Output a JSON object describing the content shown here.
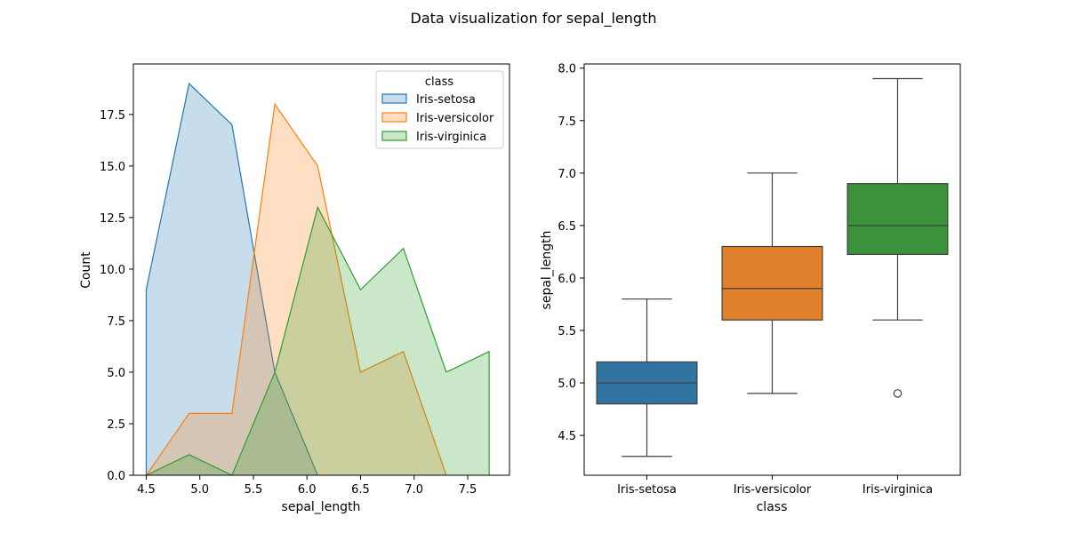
{
  "figure_title": "Data visualization for sepal_length",
  "chart_data": [
    {
      "type": "area",
      "subtype": "histogram-poly",
      "xlabel": "sepal_length",
      "ylabel": "Count",
      "xlim": [
        4.38,
        7.89
      ],
      "ylim": [
        0,
        19.95
      ],
      "xticks": [
        4.5,
        5.0,
        5.5,
        6.0,
        6.5,
        7.0,
        7.5
      ],
      "xtick_labels": [
        "4.5",
        "5.0",
        "5.5",
        "6.0",
        "6.5",
        "7.0",
        "7.5"
      ],
      "yticks": [
        0,
        2.5,
        5,
        7.5,
        10,
        12.5,
        15,
        17.5
      ],
      "ytick_labels": [
        "0.0",
        "2.5",
        "5.0",
        "7.5",
        "10.0",
        "12.5",
        "15.0",
        "17.5"
      ],
      "grid": false,
      "legend": {
        "title": "class",
        "position": "top-right"
      },
      "series": [
        {
          "name": "Iris-setosa",
          "color": "#1f77b4",
          "x": [
            4.5,
            4.9,
            5.3,
            5.7,
            6.1
          ],
          "values": [
            9,
            19,
            17,
            5,
            0
          ]
        },
        {
          "name": "Iris-versicolor",
          "color": "#ff7f0e",
          "x": [
            4.5,
            4.9,
            5.3,
            5.7,
            6.1,
            6.5,
            6.9,
            7.3
          ],
          "values": [
            0,
            3,
            3,
            18,
            15,
            5,
            6,
            0
          ]
        },
        {
          "name": "Iris-virginica",
          "color": "#2ca02c",
          "x": [
            4.5,
            4.9,
            5.3,
            5.7,
            6.1,
            6.5,
            6.9,
            7.3,
            7.7
          ],
          "values": [
            0,
            1,
            0,
            5,
            13,
            9,
            11,
            5,
            6
          ]
        }
      ]
    },
    {
      "type": "box",
      "xlabel": "class",
      "ylabel": "sepal_length",
      "ylim": [
        4.12,
        8.04
      ],
      "yticks": [
        4.5,
        5.0,
        5.5,
        6.0,
        6.5,
        7.0,
        7.5,
        8.0
      ],
      "ytick_labels": [
        "4.5",
        "5.0",
        "5.5",
        "6.0",
        "6.5",
        "7.0",
        "7.5",
        "8.0"
      ],
      "grid": false,
      "categories": [
        "Iris-setosa",
        "Iris-versicolor",
        "Iris-virginica"
      ],
      "boxes": [
        {
          "name": "Iris-setosa",
          "color": "#3274a1",
          "whislo": 4.3,
          "q1": 4.8,
          "med": 5.0,
          "q3": 5.2,
          "whishi": 5.8,
          "fliers": []
        },
        {
          "name": "Iris-versicolor",
          "color": "#e1812c",
          "whislo": 4.9,
          "q1": 5.6,
          "med": 5.9,
          "q3": 6.3,
          "whishi": 7.0,
          "fliers": []
        },
        {
          "name": "Iris-virginica",
          "color": "#3a923a",
          "whislo": 5.6,
          "q1": 6.225,
          "med": 6.5,
          "q3": 6.9,
          "whishi": 7.9,
          "fliers": [
            4.9
          ]
        }
      ]
    }
  ]
}
